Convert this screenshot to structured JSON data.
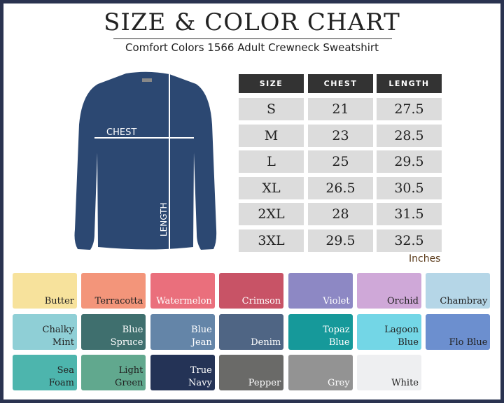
{
  "title": "SIZE & COLOR CHART",
  "subtitle": "Comfort Colors 1566 Adult Crewneck Sweatshirt",
  "diagram": {
    "chest_label": "CHEST",
    "length_label": "LENGTH"
  },
  "table": {
    "headers": [
      "SIZE",
      "CHEST",
      "LENGTH"
    ],
    "rows": [
      [
        "S",
        "21",
        "27.5"
      ],
      [
        "M",
        "23",
        "28.5"
      ],
      [
        "L",
        "25",
        "29.5"
      ],
      [
        "XL",
        "26.5",
        "30.5"
      ],
      [
        "2XL",
        "28",
        "31.5"
      ],
      [
        "3XL",
        "29.5",
        "32.5"
      ]
    ],
    "units": "Inches"
  },
  "colors": [
    {
      "name": "Butter",
      "hex": "#f7e29c",
      "text": "#222"
    },
    {
      "name": "Terracotta",
      "hex": "#f3957a",
      "text": "#222"
    },
    {
      "name": "Watermelon",
      "hex": "#ea6f7c",
      "text": "#fff"
    },
    {
      "name": "Crimson",
      "hex": "#c85366",
      "text": "#fff"
    },
    {
      "name": "Violet",
      "hex": "#8d88c4",
      "text": "#fff"
    },
    {
      "name": "Orchid",
      "hex": "#cfa8d8",
      "text": "#222"
    },
    {
      "name": "Chambray",
      "hex": "#b5d6e7",
      "text": "#222"
    },
    {
      "name": "Chalky\nMint",
      "hex": "#8fcfd6",
      "text": "#222"
    },
    {
      "name": "Blue\nSpruce",
      "hex": "#3f6f6e",
      "text": "#fff"
    },
    {
      "name": "Blue\nJean",
      "hex": "#6485a8",
      "text": "#fff"
    },
    {
      "name": "Denim",
      "hex": "#4f6584",
      "text": "#fff"
    },
    {
      "name": "Topaz\nBlue",
      "hex": "#16999a",
      "text": "#fff"
    },
    {
      "name": "Lagoon\nBlue",
      "hex": "#73d6e6",
      "text": "#222"
    },
    {
      "name": "Flo Blue",
      "hex": "#6c8fcf",
      "text": "#222"
    },
    {
      "name": "Sea\nFoam",
      "hex": "#4db5ad",
      "text": "#222"
    },
    {
      "name": "Light\nGreen",
      "hex": "#61a88e",
      "text": "#222"
    },
    {
      "name": "True\nNavy",
      "hex": "#243356",
      "text": "#fff"
    },
    {
      "name": "Pepper",
      "hex": "#6a6a68",
      "text": "#fff"
    },
    {
      "name": "Grey",
      "hex": "#939393",
      "text": "#fff"
    },
    {
      "name": "White",
      "hex": "#eeeff1",
      "text": "#222"
    }
  ]
}
